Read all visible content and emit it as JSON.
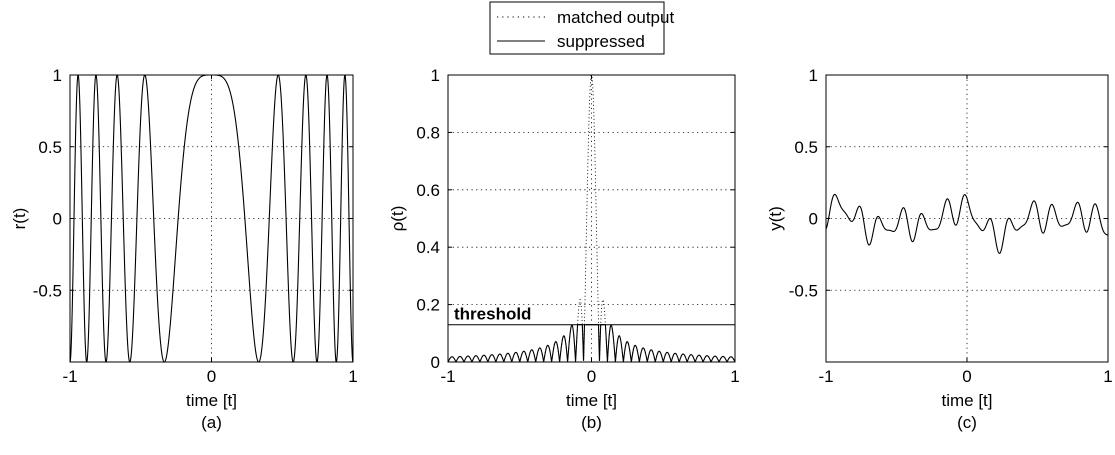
{
  "legend": {
    "entries": [
      {
        "label": "matched output",
        "style": "dotted"
      },
      {
        "label": "suppressed",
        "style": "solid"
      }
    ]
  },
  "chart_data": [
    {
      "type": "line",
      "panel_label": "(a)",
      "xlabel": "time [t]",
      "ylabel": "r(t)",
      "xlim": [
        -1,
        1
      ],
      "ylim": [
        -1,
        1
      ],
      "xticks": [
        -1,
        0,
        1
      ],
      "xtick_labels": [
        "-1",
        "0",
        "1"
      ],
      "yticks": [
        -0.5,
        0,
        0.5,
        1
      ],
      "ytick_labels": [
        "-0.5",
        "0",
        "0.5",
        "1"
      ],
      "grid": "dotted",
      "series": [
        {
          "style": "solid",
          "function": "r(t) = cos(2*pi*4.5*t^2)"
        }
      ]
    },
    {
      "type": "line",
      "panel_label": "(b)",
      "xlabel": "time [t]",
      "ylabel": "ρ(t)",
      "xlim": [
        -1,
        1
      ],
      "ylim": [
        0,
        1
      ],
      "xticks": [
        -1,
        0,
        1
      ],
      "xtick_labels": [
        "-1",
        "0",
        "1"
      ],
      "yticks": [
        0,
        0.2,
        0.4,
        0.6,
        0.8,
        1
      ],
      "ytick_labels": [
        "0",
        "0.2",
        "0.4",
        "0.6",
        "0.8",
        "1"
      ],
      "grid": "dotted",
      "threshold": {
        "value": 0.13,
        "label": "threshold"
      },
      "series": [
        {
          "name": "matched output",
          "style": "dotted",
          "function": "|sin(pi*W*t)/(pi*W*t)|, W = 18",
          "peak": 1.0
        },
        {
          "name": "suppressed",
          "style": "solid",
          "function": "matched output clipped at threshold",
          "peak": 0.13
        }
      ]
    },
    {
      "type": "line",
      "panel_label": "(c)",
      "xlabel": "time [t]",
      "ylabel": "y(t)",
      "xlim": [
        -1,
        1
      ],
      "ylim": [
        -1,
        1
      ],
      "xticks": [
        -1,
        0,
        1
      ],
      "xtick_labels": [
        "-1",
        "0",
        "1"
      ],
      "yticks": [
        -0.5,
        0,
        0.5,
        1
      ],
      "ytick_labels": [
        "-0.5",
        "0",
        "0.5",
        "1"
      ],
      "grid": "dotted",
      "series": [
        {
          "style": "solid",
          "function": "small oscillation, amplitude about 0.05–0.24 around 0"
        }
      ]
    }
  ]
}
